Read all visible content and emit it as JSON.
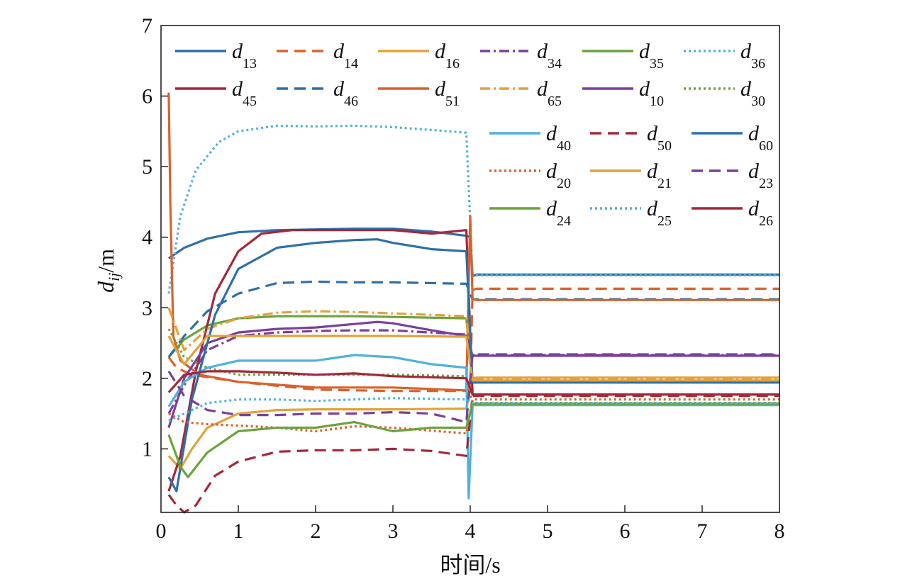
{
  "chart_data": {
    "type": "line",
    "title": "",
    "xlabel": "时间/s",
    "ylabel_main": "d",
    "ylabel_sub": "ij",
    "ylabel_unit": "/m",
    "xlim": [
      0,
      8
    ],
    "ylim": [
      0.1,
      7
    ],
    "x_ticks": [
      0,
      1,
      2,
      3,
      4,
      5,
      6,
      7,
      8
    ],
    "y_ticks": [
      1,
      2,
      3,
      4,
      5,
      6,
      7
    ],
    "x_tick_labels": [
      "0",
      "1",
      "2",
      "3",
      "4",
      "5",
      "6",
      "7",
      "8"
    ],
    "y_tick_labels": [
      "1",
      "2",
      "3",
      "4",
      "5",
      "6",
      "7"
    ],
    "grid": false,
    "legend_position": "top",
    "series": [
      {
        "name": "13",
        "color": "#2E6FA8",
        "dash": "solid",
        "points": [
          [
            0.1,
            3.7
          ],
          [
            0.3,
            3.85
          ],
          [
            0.6,
            3.98
          ],
          [
            1,
            4.07
          ],
          [
            1.5,
            4.1
          ],
          [
            2,
            4.11
          ],
          [
            2.5,
            4.12
          ],
          [
            3,
            4.12
          ],
          [
            3.5,
            4.08
          ],
          [
            3.95,
            4.02
          ],
          [
            4.0,
            4.0
          ],
          [
            4.03,
            3.45
          ],
          [
            4.08,
            3.47
          ],
          [
            8,
            3.47
          ]
        ]
      },
      {
        "name": "14",
        "color": "#D9622B",
        "dash": "dashed",
        "points": [
          [
            0.1,
            2.3
          ],
          [
            0.2,
            2.15
          ],
          [
            0.4,
            2.05
          ],
          [
            1,
            1.95
          ],
          [
            2,
            1.84
          ],
          [
            3,
            1.82
          ],
          [
            3.95,
            1.82
          ],
          [
            4.0,
            1.85
          ],
          [
            4.03,
            3.25
          ],
          [
            4.08,
            3.27
          ],
          [
            8,
            3.27
          ]
        ]
      },
      {
        "name": "16",
        "color": "#E2A23A",
        "dash": "solid",
        "points": [
          [
            0.1,
            0.9
          ],
          [
            0.25,
            0.72
          ],
          [
            0.4,
            1.0
          ],
          [
            0.6,
            1.3
          ],
          [
            1,
            1.5
          ],
          [
            1.5,
            1.55
          ],
          [
            2,
            1.56
          ],
          [
            2.5,
            1.56
          ],
          [
            3,
            1.56
          ],
          [
            3.95,
            1.57
          ],
          [
            4.03,
            2.0
          ],
          [
            4.08,
            2.01
          ],
          [
            8,
            2.01
          ]
        ]
      },
      {
        "name": "34",
        "color": "#7B3F9A",
        "dash": "dashdot",
        "points": [
          [
            0.1,
            1.5
          ],
          [
            0.3,
            1.9
          ],
          [
            0.6,
            2.4
          ],
          [
            1,
            2.6
          ],
          [
            1.5,
            2.65
          ],
          [
            2,
            2.67
          ],
          [
            2.5,
            2.68
          ],
          [
            3,
            2.68
          ],
          [
            3.95,
            2.62
          ],
          [
            4.03,
            2.33
          ],
          [
            4.08,
            2.33
          ],
          [
            8,
            2.33
          ]
        ]
      },
      {
        "name": "35",
        "color": "#6BA33C",
        "dash": "solid",
        "points": [
          [
            0.1,
            2.3
          ],
          [
            0.3,
            2.55
          ],
          [
            0.6,
            2.75
          ],
          [
            1,
            2.85
          ],
          [
            1.5,
            2.88
          ],
          [
            2,
            2.88
          ],
          [
            2.5,
            2.88
          ],
          [
            3,
            2.87
          ],
          [
            3.95,
            2.85
          ],
          [
            4.03,
            1.95
          ],
          [
            4.08,
            1.95
          ],
          [
            8,
            1.95
          ]
        ]
      },
      {
        "name": "36",
        "color": "#4FB2DA",
        "dash": "dotted",
        "points": [
          [
            0.1,
            3.2
          ],
          [
            0.25,
            4.3
          ],
          [
            0.45,
            4.95
          ],
          [
            0.75,
            5.35
          ],
          [
            1,
            5.5
          ],
          [
            1.5,
            5.58
          ],
          [
            2,
            5.57
          ],
          [
            2.5,
            5.58
          ],
          [
            3,
            5.56
          ],
          [
            3.5,
            5.52
          ],
          [
            3.95,
            5.48
          ],
          [
            4.0,
            4.2
          ],
          [
            4.03,
            3.45
          ],
          [
            4.08,
            3.46
          ],
          [
            8,
            3.46
          ]
        ]
      },
      {
        "name": "45",
        "color": "#A3283A",
        "dash": "solid",
        "points": [
          [
            0.1,
            0.4
          ],
          [
            0.25,
            0.9
          ],
          [
            0.45,
            2.1
          ],
          [
            0.7,
            3.2
          ],
          [
            1,
            3.8
          ],
          [
            1.3,
            4.05
          ],
          [
            1.7,
            4.1
          ],
          [
            2,
            4.1
          ],
          [
            2.5,
            4.1
          ],
          [
            3,
            4.1
          ],
          [
            3.5,
            4.05
          ],
          [
            3.95,
            4.1
          ],
          [
            4.03,
            1.77
          ],
          [
            4.08,
            1.77
          ],
          [
            8,
            1.77
          ]
        ]
      },
      {
        "name": "46",
        "color": "#2E6FA8",
        "dash": "dashed",
        "points": [
          [
            0.1,
            2.3
          ],
          [
            0.3,
            2.6
          ],
          [
            0.6,
            2.95
          ],
          [
            1,
            3.2
          ],
          [
            1.5,
            3.35
          ],
          [
            2,
            3.37
          ],
          [
            2.5,
            3.36
          ],
          [
            3,
            3.36
          ],
          [
            3.95,
            3.34
          ],
          [
            4.03,
            3.12
          ],
          [
            4.08,
            3.12
          ],
          [
            8,
            3.12
          ]
        ]
      },
      {
        "name": "51",
        "color": "#D9622B",
        "dash": "solid",
        "points": [
          [
            0.1,
            6.05
          ],
          [
            0.12,
            4.5
          ],
          [
            0.16,
            2.6
          ],
          [
            0.25,
            2.25
          ],
          [
            0.5,
            2.05
          ],
          [
            1,
            1.95
          ],
          [
            2,
            1.87
          ],
          [
            3,
            1.87
          ],
          [
            3.95,
            1.83
          ],
          [
            4.0,
            4.3
          ],
          [
            4.03,
            3.12
          ],
          [
            4.08,
            3.11
          ],
          [
            8,
            3.11
          ]
        ]
      },
      {
        "name": "65",
        "color": "#E2A23A",
        "dash": "dashdot",
        "points": [
          [
            0.1,
            3.0
          ],
          [
            0.3,
            2.4
          ],
          [
            0.6,
            2.7
          ],
          [
            1,
            2.85
          ],
          [
            1.5,
            2.93
          ],
          [
            2,
            2.95
          ],
          [
            2.5,
            2.94
          ],
          [
            3,
            2.92
          ],
          [
            3.95,
            2.88
          ],
          [
            4.03,
            1.99
          ],
          [
            4.08,
            1.99
          ],
          [
            8,
            1.99
          ]
        ]
      },
      {
        "name": "10",
        "color": "#7B3F9A",
        "dash": "solid",
        "points": [
          [
            0.1,
            1.3
          ],
          [
            0.3,
            2.0
          ],
          [
            0.6,
            2.5
          ],
          [
            1,
            2.65
          ],
          [
            1.5,
            2.7
          ],
          [
            2,
            2.72
          ],
          [
            2.5,
            2.77
          ],
          [
            2.8,
            2.8
          ],
          [
            3,
            2.78
          ],
          [
            3.5,
            2.68
          ],
          [
            3.95,
            2.6
          ],
          [
            4.03,
            2.32
          ],
          [
            4.08,
            2.32
          ],
          [
            8,
            2.32
          ]
        ]
      },
      {
        "name": "30",
        "color": "#6BA33C",
        "dash": "dotted",
        "points": [
          [
            0.1,
            2.7
          ],
          [
            0.3,
            2.3
          ],
          [
            0.6,
            2.15
          ],
          [
            1,
            2.05
          ],
          [
            1.5,
            2.05
          ],
          [
            2,
            2.05
          ],
          [
            2.5,
            2.05
          ],
          [
            3,
            2.05
          ],
          [
            3.95,
            2.03
          ],
          [
            4.03,
            1.65
          ],
          [
            4.08,
            1.65
          ],
          [
            8,
            1.65
          ]
        ]
      },
      {
        "name": "40",
        "color": "#4FB2DA",
        "dash": "solid",
        "points": [
          [
            0.1,
            1.6
          ],
          [
            0.3,
            1.95
          ],
          [
            0.6,
            2.15
          ],
          [
            1,
            2.25
          ],
          [
            1.5,
            2.25
          ],
          [
            2,
            2.25
          ],
          [
            2.5,
            2.33
          ],
          [
            3,
            2.3
          ],
          [
            3.5,
            2.2
          ],
          [
            3.95,
            2.15
          ],
          [
            3.98,
            0.3
          ],
          [
            4.03,
            1.62
          ],
          [
            4.08,
            1.62
          ],
          [
            8,
            1.62
          ]
        ]
      },
      {
        "name": "50",
        "color": "#A3283A",
        "dash": "dashed",
        "points": [
          [
            0.1,
            0.35
          ],
          [
            0.2,
            0.2
          ],
          [
            0.3,
            0.1
          ],
          [
            0.45,
            0.2
          ],
          [
            0.7,
            0.62
          ],
          [
            1,
            0.82
          ],
          [
            1.5,
            0.96
          ],
          [
            2,
            0.98
          ],
          [
            2.5,
            0.98
          ],
          [
            3,
            1.0
          ],
          [
            3.5,
            0.97
          ],
          [
            3.95,
            0.9
          ],
          [
            4.03,
            1.75
          ],
          [
            4.08,
            1.75
          ],
          [
            8,
            1.75
          ]
        ]
      },
      {
        "name": "60",
        "color": "#2E6FA8",
        "dash": "solid",
        "points": [
          [
            0.1,
            0.6
          ],
          [
            0.2,
            0.4
          ],
          [
            0.4,
            1.7
          ],
          [
            0.7,
            2.9
          ],
          [
            1,
            3.55
          ],
          [
            1.5,
            3.85
          ],
          [
            2,
            3.92
          ],
          [
            2.5,
            3.96
          ],
          [
            2.8,
            3.97
          ],
          [
            3,
            3.92
          ],
          [
            3.5,
            3.83
          ],
          [
            3.95,
            3.8
          ],
          [
            4.03,
            1.94
          ],
          [
            4.08,
            1.94
          ],
          [
            8,
            1.94
          ]
        ]
      },
      {
        "name": "20",
        "color": "#D9622B",
        "dash": "dotted",
        "points": [
          [
            0.1,
            1.5
          ],
          [
            0.3,
            1.38
          ],
          [
            0.6,
            1.35
          ],
          [
            1,
            1.33
          ],
          [
            1.5,
            1.3
          ],
          [
            2,
            1.25
          ],
          [
            2.5,
            1.32
          ],
          [
            3,
            1.3
          ],
          [
            3.95,
            1.22
          ],
          [
            4.03,
            1.7
          ],
          [
            4.08,
            1.7
          ],
          [
            8,
            1.7
          ]
        ]
      },
      {
        "name": "21",
        "color": "#E2A23A",
        "dash": "solid",
        "points": [
          [
            0.1,
            2.6
          ],
          [
            0.3,
            2.2
          ],
          [
            0.6,
            2.6
          ],
          [
            1,
            2.6
          ],
          [
            1.5,
            2.6
          ],
          [
            2,
            2.6
          ],
          [
            2.5,
            2.6
          ],
          [
            3,
            2.6
          ],
          [
            3.95,
            2.59
          ],
          [
            4.03,
            1.97
          ],
          [
            4.08,
            1.97
          ],
          [
            8,
            1.97
          ]
        ]
      },
      {
        "name": "23",
        "color": "#7B3F9A",
        "dash": "dashed",
        "points": [
          [
            0.1,
            2.1
          ],
          [
            0.3,
            1.75
          ],
          [
            0.6,
            1.55
          ],
          [
            1,
            1.48
          ],
          [
            1.5,
            1.48
          ],
          [
            2,
            1.5
          ],
          [
            2.5,
            1.5
          ],
          [
            3,
            1.52
          ],
          [
            3.5,
            1.5
          ],
          [
            3.95,
            1.38
          ],
          [
            4.03,
            2.34
          ],
          [
            4.08,
            2.34
          ],
          [
            8,
            2.34
          ]
        ]
      },
      {
        "name": "24",
        "color": "#6BA33C",
        "dash": "solid",
        "points": [
          [
            0.1,
            1.2
          ],
          [
            0.25,
            0.75
          ],
          [
            0.35,
            0.6
          ],
          [
            0.6,
            0.95
          ],
          [
            1,
            1.25
          ],
          [
            1.5,
            1.3
          ],
          [
            2,
            1.3
          ],
          [
            2.5,
            1.38
          ],
          [
            3,
            1.25
          ],
          [
            3.5,
            1.3
          ],
          [
            3.95,
            1.3
          ],
          [
            4.03,
            1.64
          ],
          [
            4.08,
            1.64
          ],
          [
            8,
            1.64
          ]
        ]
      },
      {
        "name": "25",
        "color": "#4FB2DA",
        "dash": "dotted",
        "points": [
          [
            0.1,
            1.4
          ],
          [
            0.3,
            1.5
          ],
          [
            0.6,
            1.65
          ],
          [
            1,
            1.7
          ],
          [
            1.5,
            1.7
          ],
          [
            2,
            1.68
          ],
          [
            2.5,
            1.7
          ],
          [
            3,
            1.72
          ],
          [
            3.95,
            1.7
          ],
          [
            4.03,
            1.65
          ],
          [
            4.08,
            1.65
          ],
          [
            8,
            1.65
          ]
        ]
      },
      {
        "name": "26",
        "color": "#A3283A",
        "dash": "solid",
        "points": [
          [
            0.1,
            1.8
          ],
          [
            0.3,
            2.05
          ],
          [
            0.6,
            2.1
          ],
          [
            1,
            2.1
          ],
          [
            1.5,
            2.08
          ],
          [
            2,
            2.05
          ],
          [
            2.5,
            2.07
          ],
          [
            3,
            2.03
          ],
          [
            3.95,
            2.0
          ],
          [
            4.03,
            1.77
          ],
          [
            4.08,
            1.77
          ],
          [
            8,
            1.77
          ]
        ]
      }
    ]
  }
}
